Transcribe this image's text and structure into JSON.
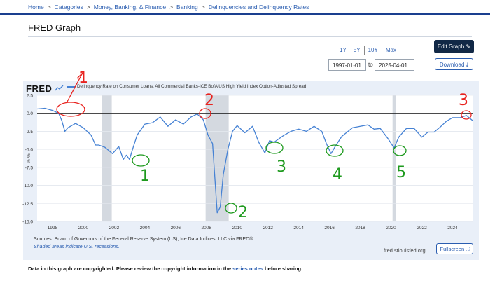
{
  "breadcrumb": [
    "Home",
    "Categories",
    "Money, Banking, & Finance",
    "Banking",
    "Delinquencies and Delinquency Rates"
  ],
  "breadcrumb_sep": ">",
  "page_title": "FRED Graph",
  "range_buttons": [
    "1Y",
    "5Y",
    "10Y",
    "Max"
  ],
  "date_start": "1997-01-01",
  "date_to_label": "to",
  "date_end": "2025-04-01",
  "edit_graph_label": "Edit Graph",
  "download_label": "Download",
  "logo_text": "FRED",
  "sources_text": "Sources: Board of Governors of the Federal Reserve System (US); Ice Data Indices, LLC via FRED®",
  "shaded_note": "Shaded areas indicate U.S. recessions.",
  "fred_url": "fred.stlouisfed.org",
  "fullscreen_label": "Fullscreen",
  "copyright_prefix": "Data in this graph are copyrighted. Please review the copyright information in the",
  "copyright_link": "series notes",
  "copyright_suffix": "before sharing.",
  "colors": {
    "series": "#4682d4",
    "accent": "#112846",
    "link": "#2a5db0",
    "panel": "#e9eff8",
    "recession": "#d4d9e0",
    "annotation_red": "#e8231f",
    "annotation_green": "#1e9a1e"
  },
  "chart_data": {
    "type": "line",
    "legend": "Delinquency Rate on Consumer Loans, All Commercial Banks-ICE BofA US High Yield Index Option-Adjusted Spread",
    "ylabel": "%-%",
    "xlim": [
      1997.0,
      2025.3
    ],
    "ylim": [
      -15,
      2.5
    ],
    "yticks": [
      2.5,
      0.0,
      -2.5,
      -5.0,
      -7.5,
      -10.0,
      -12.5,
      -15.0
    ],
    "ytick_labels": [
      "2.5",
      "0.0",
      "-2.5",
      "-5.0",
      "-7.5",
      "-10.0",
      "-12.5",
      "-15.0"
    ],
    "xticks": [
      1998,
      2000,
      2002,
      2004,
      2006,
      2008,
      2010,
      2012,
      2014,
      2016,
      2018,
      2020,
      2022,
      2024
    ],
    "xtick_labels": [
      "1998",
      "2000",
      "2002",
      "2004",
      "2006",
      "2008",
      "2010",
      "2012",
      "2014",
      "2016",
      "2018",
      "2020",
      "2022",
      "2024"
    ],
    "recessions": [
      [
        2001.2,
        2001.85
      ],
      [
        2007.95,
        2009.45
      ],
      [
        2020.1,
        2020.3
      ]
    ],
    "reference_line": 0,
    "series": [
      {
        "name": "Delinquency Rate on Consumer Loans, All Commercial Banks-ICE BofA US High Yield Index Option-Adjusted Spread",
        "x": [
          1997.0,
          1997.5,
          1998.0,
          1998.4,
          1998.6,
          1998.8,
          1999.0,
          1999.5,
          2000.0,
          2000.5,
          2000.8,
          2001.0,
          2001.4,
          2001.9,
          2002.3,
          2002.6,
          2002.8,
          2003.0,
          2003.2,
          2003.5,
          2004.0,
          2004.5,
          2005.0,
          2005.5,
          2006.0,
          2006.5,
          2007.0,
          2007.4,
          2007.8,
          2008.1,
          2008.4,
          2008.7,
          2008.9,
          2009.1,
          2009.4,
          2009.7,
          2010.0,
          2010.5,
          2011.0,
          2011.4,
          2011.8,
          2012.1,
          2012.4,
          2013.0,
          2013.5,
          2014.0,
          2014.5,
          2015.0,
          2015.5,
          2015.8,
          2016.1,
          2016.4,
          2016.8,
          2017.5,
          2018.5,
          2018.9,
          2019.3,
          2019.8,
          2020.2,
          2020.5,
          2021.0,
          2021.5,
          2022.0,
          2022.4,
          2022.8,
          2023.2,
          2023.6,
          2024.0,
          2024.5,
          2024.9,
          2025.3
        ],
        "y": [
          0.6,
          0.7,
          0.4,
          0.0,
          -1.0,
          -2.5,
          -2.0,
          -1.4,
          -2.0,
          -3.0,
          -4.4,
          -4.4,
          -4.7,
          -5.6,
          -4.6,
          -6.4,
          -5.8,
          -6.4,
          -5.0,
          -3.0,
          -1.5,
          -1.3,
          -0.5,
          -1.8,
          -0.9,
          -1.5,
          -0.5,
          -0.1,
          -0.9,
          -3.0,
          -4.2,
          -13.8,
          -13.0,
          -8.5,
          -5.0,
          -2.5,
          -1.7,
          -2.7,
          -1.8,
          -4.0,
          -5.5,
          -3.8,
          -4.0,
          -3.1,
          -2.5,
          -2.2,
          -2.5,
          -1.8,
          -2.5,
          -4.2,
          -5.6,
          -4.5,
          -3.2,
          -2.0,
          -1.6,
          -2.2,
          -2.1,
          -3.5,
          -4.8,
          -3.3,
          -2.1,
          -2.1,
          -3.3,
          -2.6,
          -2.6,
          -1.9,
          -1.1,
          -0.6,
          -0.6,
          -0.3,
          -1.0
        ]
      }
    ]
  },
  "annotations": {
    "red": [
      "1",
      "2",
      "3"
    ],
    "green": [
      "1",
      "2",
      "3",
      "4",
      "5"
    ]
  }
}
